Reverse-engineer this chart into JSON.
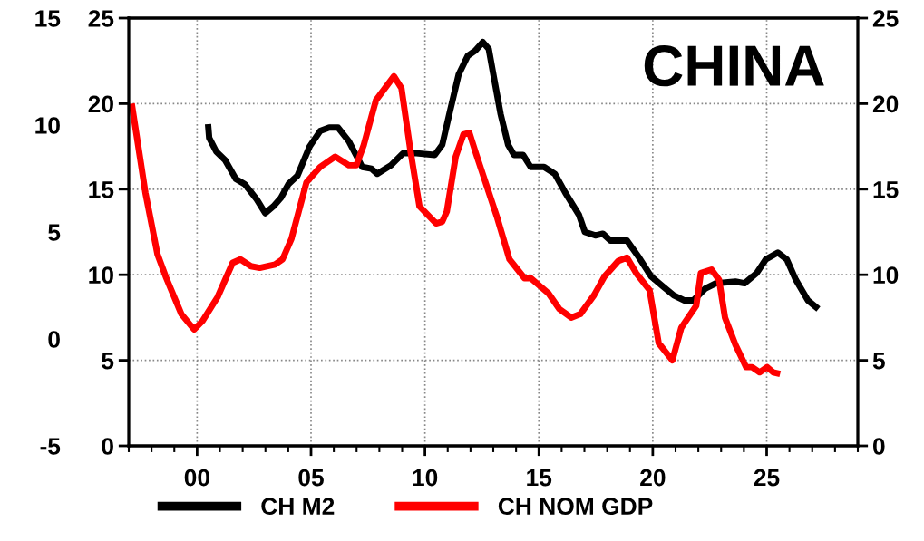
{
  "chart_data": {
    "type": "line",
    "title": "CHINA",
    "series": [
      {
        "name": "CH M2",
        "color": "#000000",
        "x": [
          2000.48,
          2000.53,
          2000.84,
          2001.23,
          2001.7,
          2002.09,
          2002.62,
          2002.99,
          2003.35,
          2003.68,
          2004.01,
          2004.41,
          2004.94,
          2005.4,
          2005.8,
          2006.19,
          2006.66,
          2007.25,
          2007.65,
          2007.91,
          2008.51,
          2009.04,
          2009.63,
          2010.43,
          2010.76,
          2011.09,
          2011.48,
          2011.88,
          2012.21,
          2012.54,
          2012.8,
          2012.99,
          2013.32,
          2013.65,
          2013.91,
          2014.31,
          2014.64,
          2015.23,
          2015.7,
          2016.16,
          2016.76,
          2017.02,
          2017.48,
          2017.81,
          2018.14,
          2018.87,
          2019.4,
          2019.93,
          2020.46,
          2020.92,
          2021.39,
          2021.78,
          2022.31,
          2022.77,
          2023.63,
          2024.03,
          2024.56,
          2024.96,
          2025.49,
          2025.88,
          2026.28,
          2026.81,
          2027.27
        ],
        "values": [
          18.8,
          18.0,
          17.2,
          16.7,
          15.6,
          15.3,
          14.4,
          13.6,
          14.0,
          14.5,
          15.3,
          15.8,
          17.5,
          18.4,
          18.6,
          18.6,
          17.8,
          16.3,
          16.2,
          15.9,
          16.4,
          17.1,
          17.1,
          17.0,
          17.6,
          19.5,
          21.7,
          22.8,
          23.1,
          23.6,
          23.2,
          21.8,
          19.4,
          17.6,
          17.0,
          17.0,
          16.3,
          16.3,
          15.9,
          14.8,
          13.5,
          12.5,
          12.3,
          12.4,
          12.0,
          12.0,
          11.0,
          9.9,
          9.3,
          8.8,
          8.5,
          8.5,
          9.2,
          9.5,
          9.6,
          9.5,
          10.1,
          10.9,
          11.3,
          10.9,
          9.7,
          8.5,
          8.0
        ]
      },
      {
        "name": "CH NOM GDP",
        "color": "#ff0000",
        "x": [
          1997.13,
          1997.73,
          1998.26,
          1998.65,
          1999.31,
          1999.87,
          2000.24,
          2000.9,
          2001.56,
          2001.9,
          2002.36,
          2002.75,
          2003.42,
          2003.75,
          2004.14,
          2004.8,
          2005.4,
          2006.06,
          2006.66,
          2006.99,
          2007.32,
          2007.85,
          2008.64,
          2008.97,
          2009.37,
          2009.76,
          2010.49,
          2010.76,
          2010.96,
          2011.35,
          2011.69,
          2011.95,
          2012.26,
          2013.18,
          2013.71,
          2014.37,
          2014.64,
          2015.43,
          2015.9,
          2016.42,
          2016.82,
          2017.42,
          2017.88,
          2018.48,
          2018.87,
          2019.27,
          2019.86,
          2020.26,
          2020.86,
          2021.25,
          2021.91,
          2022.11,
          2022.58,
          2022.91,
          2023.17,
          2023.63,
          2024.1,
          2024.36,
          2024.69,
          2025.02,
          2025.29,
          2025.59
        ],
        "values": [
          20.0,
          14.8,
          11.2,
          9.8,
          7.7,
          6.8,
          7.3,
          8.7,
          10.7,
          10.9,
          10.5,
          10.4,
          10.6,
          10.9,
          12.1,
          15.4,
          16.3,
          16.9,
          16.4,
          16.4,
          17.6,
          20.2,
          21.6,
          20.9,
          17.2,
          14.0,
          13.0,
          13.1,
          13.7,
          16.9,
          18.2,
          18.3,
          17.0,
          13.3,
          10.9,
          9.8,
          9.8,
          8.9,
          8.0,
          7.5,
          7.7,
          8.8,
          9.9,
          10.8,
          11.0,
          10.1,
          9.1,
          6.0,
          5.0,
          6.9,
          8.2,
          10.1,
          10.3,
          9.7,
          7.5,
          5.9,
          4.6,
          4.6,
          4.3,
          4.6,
          4.3,
          4.2
        ]
      }
    ],
    "xlim": [
      1997,
      2029
    ],
    "xticks": [
      {
        "value": 1997,
        "label": null
      },
      {
        "value": 1998,
        "label": null
      },
      {
        "value": 1999,
        "label": null
      },
      {
        "value": 2000,
        "label": "00"
      },
      {
        "value": 2001,
        "label": null
      },
      {
        "value": 2002,
        "label": null
      },
      {
        "value": 2003,
        "label": null
      },
      {
        "value": 2004,
        "label": null
      },
      {
        "value": 2005,
        "label": "05"
      },
      {
        "value": 2006,
        "label": null
      },
      {
        "value": 2007,
        "label": null
      },
      {
        "value": 2008,
        "label": null
      },
      {
        "value": 2009,
        "label": null
      },
      {
        "value": 2010,
        "label": "10"
      },
      {
        "value": 2011,
        "label": null
      },
      {
        "value": 2012,
        "label": null
      },
      {
        "value": 2013,
        "label": null
      },
      {
        "value": 2014,
        "label": null
      },
      {
        "value": 2015,
        "label": "15"
      },
      {
        "value": 2016,
        "label": null
      },
      {
        "value": 2017,
        "label": null
      },
      {
        "value": 2018,
        "label": null
      },
      {
        "value": 2019,
        "label": null
      },
      {
        "value": 2020,
        "label": "20"
      },
      {
        "value": 2021,
        "label": null
      },
      {
        "value": 2022,
        "label": null
      },
      {
        "value": 2023,
        "label": null
      },
      {
        "value": 2024,
        "label": null
      },
      {
        "value": 2025,
        "label": "25"
      },
      {
        "value": 2026,
        "label": null
      },
      {
        "value": 2027,
        "label": null
      },
      {
        "value": 2028,
        "label": null
      },
      {
        "value": 2029,
        "label": null
      }
    ],
    "ylim": [
      0,
      25
    ],
    "yticks": [
      0,
      5,
      10,
      15,
      20,
      25
    ],
    "y2lim": [
      0,
      25
    ],
    "y2ticks": [
      0,
      5,
      10,
      15,
      20,
      25
    ],
    "y3lim": [
      -5,
      15
    ],
    "y3ticks": [
      -5,
      0,
      5,
      10,
      15
    ],
    "grid": true,
    "legend": "bottom",
    "line_style": "solid",
    "marker": "none"
  }
}
